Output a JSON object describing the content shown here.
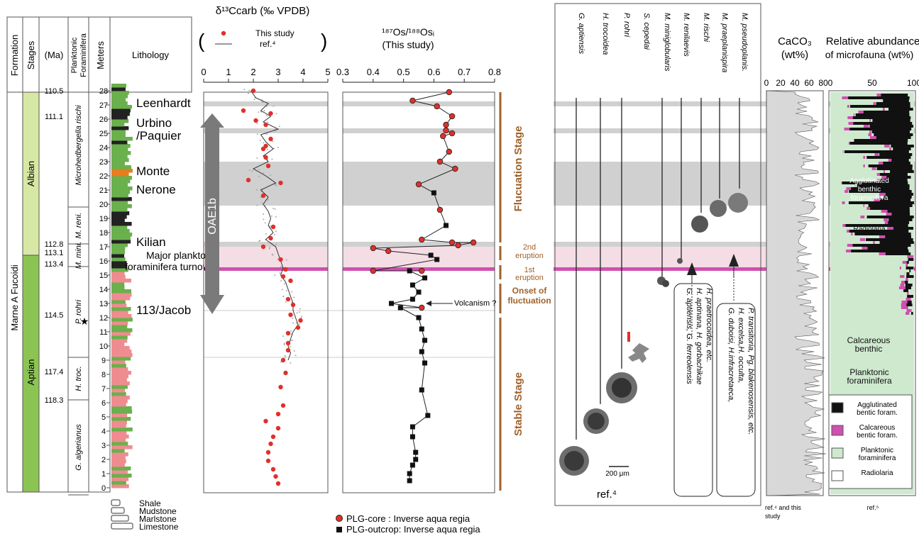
{
  "strat": {
    "headers": {
      "formation": "Formation",
      "stages": "Stages",
      "ma": "(Ma)",
      "forams": "Planktonic Foraminifera",
      "meters": "Meters",
      "lithology": "Lithology"
    },
    "formation_name": "Marne A Fucoidi",
    "stages": [
      "Albian",
      "Aptian"
    ],
    "ages": [
      {
        "label": "110.5",
        "m": 28
      },
      {
        "label": "111.1",
        "m": 26.2
      },
      {
        "label": "112.8",
        "m": 17.2
      },
      {
        "label": "113.1",
        "m": 16.6
      },
      {
        "label": "113.4",
        "m": 15.8
      },
      {
        "label": "114.5",
        "m": 12.2
      },
      {
        "label": "117.4",
        "m": 8.2
      },
      {
        "label": "118.3",
        "m": 6.2
      }
    ],
    "zones": [
      {
        "label": "Microhedbergella rischi",
        "top": 28.5,
        "bottom": 19.8
      },
      {
        "label": "M. reni.",
        "top": 19.8,
        "bottom": 17.2
      },
      {
        "label": "M. mini.",
        "top": 17.2,
        "bottom": 15.6
      },
      {
        "label": "P. rohri",
        "top": 15.6,
        "bottom": 9.2
      },
      {
        "label": "H. troc.",
        "top": 9.2,
        "bottom": 6.2
      },
      {
        "label": "G. algerianus",
        "top": 6.2,
        "bottom": -0.5
      }
    ],
    "meter_ticks": [
      "0",
      "1",
      "2",
      "3",
      "4",
      "5",
      "6",
      "7",
      "8",
      "9",
      "10",
      "11",
      "12",
      "13",
      "14",
      "15",
      "16",
      "17",
      "18",
      "19",
      "20",
      "21",
      "22",
      "23",
      "24",
      "25",
      "26",
      "27",
      "28"
    ],
    "lithology_legend": [
      "Shale",
      "Mudstone",
      "Marlstone",
      "Limestone"
    ]
  },
  "events": [
    {
      "label": "Leenhardt",
      "m": 27.1
    },
    {
      "label": "Urbino",
      "m": 25.7
    },
    {
      "label": "/Paquier",
      "m": 24.8
    },
    {
      "label": "Monte",
      "m": 22.3
    },
    {
      "label": "Nerone",
      "m": 21.0
    },
    {
      "label": "Kilian",
      "m": 17.3
    },
    {
      "label": "Major planktonic",
      "m": 16.4
    },
    {
      "label": "foraminifera turnover",
      "m": 15.6
    },
    {
      "label": "113/Jacob",
      "m": 12.5
    },
    {
      "label": "OAE1b",
      "m": 20
    }
  ],
  "chart_data": [
    {
      "type": "scatter",
      "title": "δ¹³Ccarb (‰ VPDB)",
      "xlim": [
        0,
        5
      ],
      "xticks": [
        "0",
        "1",
        "2",
        "3",
        "4",
        "5"
      ],
      "ylim": [
        -0.5,
        28.5
      ],
      "legend": [
        "This study",
        "ref.⁴"
      ],
      "series": [
        {
          "name": "This study",
          "points": [
            [
              2.0,
              28.0
            ],
            [
              1.6,
              26.6
            ],
            [
              2.7,
              26.4
            ],
            [
              2.1,
              25.9
            ],
            [
              2.5,
              25.6
            ],
            [
              2.7,
              24.6
            ],
            [
              2.5,
              24.1
            ],
            [
              2.4,
              23.9
            ],
            [
              2.5,
              23.3
            ],
            [
              2.6,
              22.7
            ],
            [
              1.8,
              21.7
            ],
            [
              3.1,
              21.5
            ],
            [
              2.4,
              20.6
            ],
            [
              2.8,
              18.4
            ],
            [
              2.7,
              17.6
            ],
            [
              2.4,
              17.0
            ],
            [
              3.1,
              16.1
            ],
            [
              3.3,
              15.4
            ],
            [
              3.2,
              14.9
            ],
            [
              3.5,
              14.6
            ],
            [
              3.4,
              13.3
            ],
            [
              3.6,
              12.9
            ],
            [
              3.5,
              12.2
            ],
            [
              3.9,
              11.8
            ],
            [
              3.8,
              11.3
            ],
            [
              3.4,
              10.9
            ],
            [
              3.4,
              10.2
            ],
            [
              3.4,
              9.7
            ],
            [
              3.2,
              9.0
            ],
            [
              3.3,
              8.1
            ],
            [
              3.1,
              7.1
            ],
            [
              3.2,
              5.8
            ],
            [
              3.0,
              5.2
            ],
            [
              2.5,
              4.7
            ],
            [
              3.0,
              4.2
            ],
            [
              2.8,
              3.6
            ],
            [
              2.7,
              3.1
            ],
            [
              2.6,
              2.5
            ],
            [
              2.6,
              1.9
            ],
            [
              2.8,
              1.3
            ],
            [
              2.9,
              0.8
            ],
            [
              3.0,
              0.3
            ]
          ]
        },
        {
          "name": "ref.⁴",
          "points": [
            [
              1.9,
              28.0
            ],
            [
              2.1,
              27.5
            ],
            [
              2.6,
              27.1
            ],
            [
              2.3,
              26.6
            ],
            [
              2.7,
              26.2
            ],
            [
              2.4,
              25.8
            ],
            [
              3.0,
              25.3
            ],
            [
              2.3,
              24.9
            ],
            [
              2.5,
              24.4
            ],
            [
              2.8,
              23.9
            ],
            [
              2.4,
              23.4
            ],
            [
              2.6,
              23.0
            ],
            [
              2.0,
              22.5
            ],
            [
              2.5,
              22.0
            ],
            [
              2.9,
              21.5
            ],
            [
              2.3,
              21.0
            ],
            [
              2.6,
              20.5
            ],
            [
              2.4,
              20.0
            ],
            [
              2.6,
              19.5
            ],
            [
              2.7,
              19.0
            ],
            [
              2.6,
              18.5
            ],
            [
              2.8,
              18.0
            ],
            [
              2.5,
              17.5
            ],
            [
              2.9,
              17.0
            ],
            [
              3.0,
              16.5
            ],
            [
              3.1,
              16.0
            ],
            [
              3.2,
              15.5
            ],
            [
              3.1,
              15.0
            ],
            [
              3.3,
              14.5
            ],
            [
              3.4,
              14.0
            ],
            [
              3.5,
              13.5
            ],
            [
              3.6,
              13.0
            ],
            [
              3.6,
              12.5
            ],
            [
              3.7,
              12.0
            ],
            [
              3.8,
              11.5
            ],
            [
              3.6,
              11.0
            ],
            [
              3.5,
              10.5
            ],
            [
              3.4,
              10.0
            ],
            [
              3.5,
              9.5
            ],
            [
              3.4,
              9.0
            ]
          ]
        }
      ]
    },
    {
      "type": "line",
      "title": "¹⁸⁷Os/¹⁸⁸Osᵢ",
      "subtitle": "(This study)",
      "xlim": [
        0.3,
        0.8
      ],
      "xticks": [
        "0.3",
        "0.4",
        "0.5",
        "0.6",
        "0.7",
        "0.8"
      ],
      "ylim": [
        -0.5,
        28.5
      ],
      "legend": [
        "PLG-core : Inverse aqua regia",
        "PLG-outcrop: Inverse aqua regia"
      ],
      "series": [
        {
          "name": "PLG-core : Inverse aqua regia",
          "points": [
            [
              0.65,
              27.9
            ],
            [
              0.53,
              27.3
            ],
            [
              0.61,
              26.9
            ],
            [
              0.66,
              26.2
            ],
            [
              0.64,
              25.6
            ],
            [
              0.64,
              25.2
            ],
            [
              0.66,
              25.0
            ],
            [
              0.63,
              24.8
            ],
            [
              0.65,
              23.7
            ],
            [
              0.62,
              23.0
            ],
            [
              0.67,
              22.5
            ],
            [
              0.55,
              21.4
            ],
            [
              0.62,
              19.6
            ],
            [
              0.56,
              17.5
            ],
            [
              0.66,
              17.3
            ],
            [
              0.73,
              17.3
            ],
            [
              0.68,
              17.1
            ],
            [
              0.4,
              16.9
            ],
            [
              0.45,
              16.7
            ],
            [
              0.4,
              15.3
            ],
            [
              0.56,
              15.3
            ],
            [
              0.56,
              12.7
            ]
          ]
        },
        {
          "name": "PLG-outcrop: Inverse aqua regia",
          "points": [
            [
              0.6,
              20.8
            ],
            [
              0.64,
              18.5
            ],
            [
              0.59,
              16.4
            ],
            [
              0.61,
              16.1
            ],
            [
              0.52,
              15.3
            ],
            [
              0.57,
              14.8
            ],
            [
              0.53,
              14.3
            ],
            [
              0.55,
              13.8
            ],
            [
              0.53,
              13.3
            ],
            [
              0.46,
              13.0
            ],
            [
              0.49,
              12.7
            ],
            [
              0.55,
              12.0
            ],
            [
              0.56,
              11.2
            ],
            [
              0.57,
              10.4
            ],
            [
              0.56,
              9.6
            ],
            [
              0.57,
              8.8
            ],
            [
              0.56,
              6.9
            ],
            [
              0.58,
              5.1
            ],
            [
              0.53,
              4.3
            ],
            [
              0.53,
              3.6
            ],
            [
              0.54,
              2.5
            ],
            [
              0.54,
              2.0
            ],
            [
              0.53,
              1.6
            ],
            [
              0.52,
              1.0
            ],
            [
              0.52,
              0.5
            ]
          ]
        }
      ]
    },
    {
      "type": "area",
      "title": "CaCO₃",
      "subtitle": "(wt%)",
      "xlim": [
        0,
        80
      ],
      "xticks": [
        "0",
        "20",
        "40",
        "60",
        "80"
      ],
      "source": "ref.⁴ and this study"
    },
    {
      "type": "area",
      "title": "Relative abundance",
      "subtitle": "of microfauna (wt%)",
      "xlim": [
        0,
        100
      ],
      "xticks": [
        "0",
        "50",
        "100"
      ],
      "source": "ref.⁵",
      "legend": [
        "Agglutinated bentic foram.",
        "Calcareous bentic foram.",
        "Planktonic foraminifera",
        "Radiolaria"
      ],
      "annotations": [
        "Agglutinated",
        "benthic",
        "foraminifera",
        "Radiolaria",
        "Calcareous",
        "benthic",
        "Planktonic",
        "foraminifera"
      ]
    }
  ],
  "stages_bar": [
    {
      "label": "Flucuation Stage"
    },
    {
      "label": "2nd"
    },
    {
      "label": "eruption"
    },
    {
      "label": "1st"
    },
    {
      "label": "eruption"
    },
    {
      "label": "Onset of"
    },
    {
      "label": "fluctuation"
    },
    {
      "label": "Stable Stage"
    }
  ],
  "volcanism": "Volcanism ?",
  "species": {
    "names": [
      "G. aptiensis",
      "H. trocoidea",
      "P. rohri",
      "S. cepedai",
      "M. miniglobularis",
      "M. renilaevis",
      "M. rischi",
      "M. praeplanispira",
      "M. pseudoplanis."
    ],
    "box1": [
      "G. aptiensis, G. ferreolensis",
      "H. aptinana, H. gorbachikae",
      "H. praetrocoidea, etc."
    ],
    "box2": [
      "G. duboisi, H.infracretaeca,",
      "H. excelsa,H. occulta,",
      "P. transitoria, Pg. blakenosensis, etc."
    ],
    "scale": "200 μm",
    "ref": "ref.⁴"
  },
  "colors": {
    "red": "#e0302b",
    "brown": "#a0622b",
    "gray_band": "#d0d0d0",
    "pink_band": "#f5dde6",
    "magenta": "#d050b0",
    "green_lith": "#6ab04c",
    "pink_lith": "#ef8c90",
    "albian": "#d7e8a4",
    "aptian": "#8cc453"
  }
}
